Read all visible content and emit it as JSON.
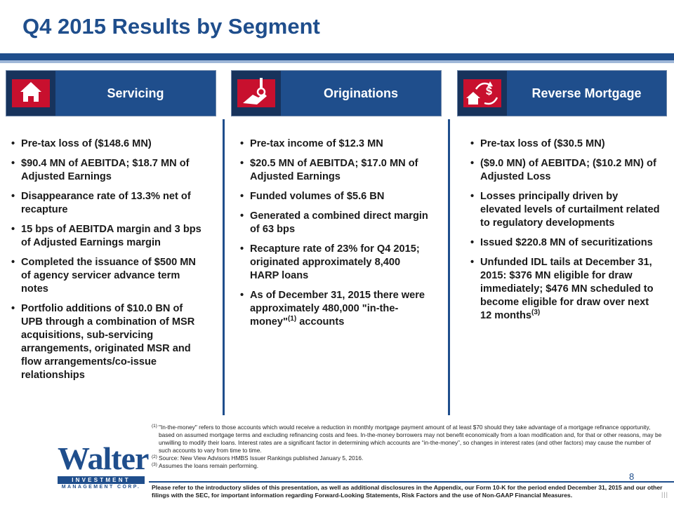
{
  "title": "Q4 2015 Results by Segment",
  "segments": [
    {
      "label": "Servicing",
      "icon": "house-icon",
      "bullets": [
        {
          "text": "Pre-tax loss of ($148.6 MN)",
          "sup": ""
        },
        {
          "text": "$90.4 MN of AEBITDA; $18.7 MN of Adjusted Earnings",
          "sup": ""
        },
        {
          "text": "Disappearance rate of 13.3% net of recapture",
          "sup": ""
        },
        {
          "text": "15 bps of AEBITDA margin and 3 bps of Adjusted Earnings margin",
          "sup": ""
        },
        {
          "text": "Completed the issuance of $500 MN of agency servicer advance term notes",
          "sup": ""
        },
        {
          "text": "Portfolio additions of $10.0 BN of UPB through a combination of MSR acquisitions, sub-servicing arrangements, originated MSR and flow arrangements/co-issue relationships",
          "sup": ""
        }
      ]
    },
    {
      "label": "Originations",
      "icon": "key-handshake-icon",
      "bullets": [
        {
          "text": "Pre-tax income of $12.3 MN",
          "sup": ""
        },
        {
          "text": "$20.5 MN of AEBITDA;  $17.0 MN of Adjusted Earnings",
          "sup": ""
        },
        {
          "text": "Funded volumes of $5.6 BN",
          "sup": ""
        },
        {
          "text": "Generated a combined direct margin of 63 bps",
          "sup": ""
        },
        {
          "text": "Recapture rate of 23% for Q4 2015; originated approximately 8,400 HARP loans",
          "sup": ""
        },
        {
          "text": "As of December 31, 2015 there were approximately 480,000 \"in-the-money\"",
          "sup": "(1)",
          "tail": " accounts"
        }
      ]
    },
    {
      "label": "Reverse Mortgage",
      "icon": "house-dollar-cycle-icon",
      "bullets": [
        {
          "text": "Pre-tax loss of ($30.5 MN)",
          "sup": ""
        },
        {
          "text": "($9.0 MN) of AEBITDA; ($10.2 MN) of Adjusted Loss",
          "sup": ""
        },
        {
          "text": "Losses principally driven by elevated levels of curtailment related to regulatory developments",
          "sup": ""
        },
        {
          "text": "Issued $220.8 MN of securitizations",
          "sup": ""
        },
        {
          "text": "Unfunded IDL tails at December 31, 2015: $376 MN eligible for draw immediately; $476 MN scheduled to become eligible for draw over next 12 months",
          "sup": "(3)"
        }
      ]
    }
  ],
  "footnotes": [
    {
      "mark": "(1)",
      "text": "\"In-the-money\"  refers to those accounts which would receive a reduction in monthly mortgage payment amount of at least $70 should they take advantage of a mortgage refinance opportunity, based on assumed mortgage terms and excluding refinancing costs and  fees. In-the-money borrowers may not benefit economically from a loan modification and, for that or other reasons, may be unwilling to modify their loans.  Interest rates are a significant factor in determining which accounts are “in-the-money”, so changes in interest rates (and other factors) may cause the number of such accounts to vary from time to time."
    },
    {
      "mark": "(2)",
      "text": "Source: New View Advisors HMBS Issuer Rankings published January 5, 2016."
    },
    {
      "mark": "(3)",
      "text": "Assumes the loans remain performing."
    }
  ],
  "logo": {
    "word": "Walter",
    "bar": "INVESTMENT",
    "sub": "MANAGEMENT CORP."
  },
  "page_number": "8",
  "disclaimer": "Please refer to the introductory slides of this presentation, as well as additional disclosures in the Appendix, our Form 10-K for the period ended December 31, 2015 and our other filings with the SEC, for important information regarding Forward-Looking Statements, Risk Factors and the use of Non-GAAP Financial Measures.",
  "corner_mark": "|||",
  "colors": {
    "brand": "#1f4e8c",
    "brand_dark": "#17335c",
    "icon_red": "#c8102e"
  }
}
